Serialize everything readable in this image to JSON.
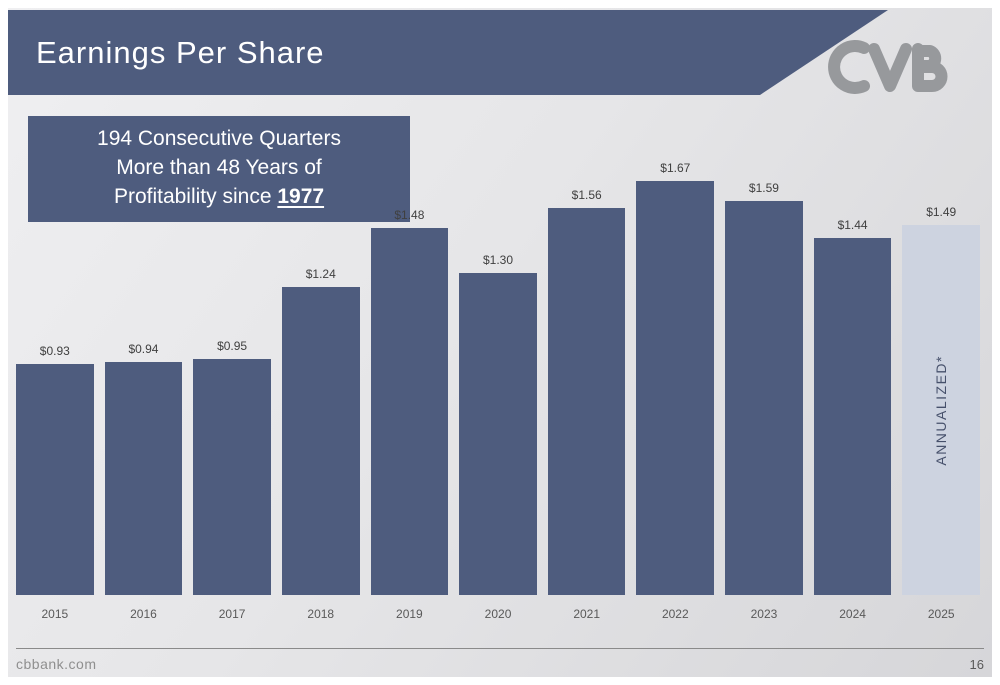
{
  "slide": {
    "title": "Earnings Per Share",
    "callout": {
      "line1": "194 Consecutive Quarters",
      "line2": "More than 48 Years of",
      "line3_prefix": "Profitability since ",
      "line3_year": "1977"
    },
    "footer": {
      "website": "cbbank.com",
      "page_number": "16"
    },
    "logo_name": "cvb-logo"
  },
  "colors": {
    "banner": "#4e5c7e",
    "bar": "#4e5c7e",
    "bar_light": "#cdd3e0",
    "logo": "#97999c"
  },
  "chart_data": {
    "type": "bar",
    "title": "Earnings Per Share",
    "xlabel": "",
    "ylabel": "",
    "ylim": [
      0,
      1.8
    ],
    "grid": false,
    "categories": [
      "2015",
      "2016",
      "2017",
      "2018",
      "2019",
      "2020",
      "2021",
      "2022",
      "2023",
      "2024",
      "2025"
    ],
    "values": [
      0.93,
      0.94,
      0.95,
      1.24,
      1.48,
      1.3,
      1.56,
      1.67,
      1.59,
      1.44,
      1.49
    ],
    "labels": [
      "$0.93",
      "$0.94",
      "$0.95",
      "$1.24",
      "$1.48",
      "$1.30",
      "$1.56",
      "$1.67",
      "$1.59",
      "$1.44",
      "$1.49"
    ],
    "annualized_index": 10,
    "annualized_label": "ANNUALIZED*"
  }
}
